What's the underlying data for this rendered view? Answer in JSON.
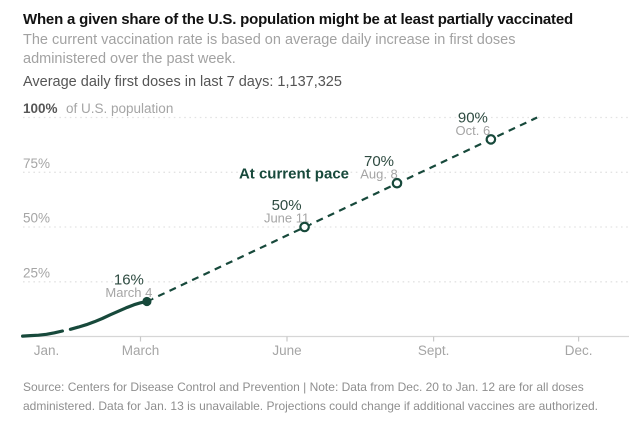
{
  "header": {
    "title": "When a given share of the U.S. population might be at least partially vaccinated",
    "subtitle_line1": "The current vaccination rate is based on average daily increase in first doses",
    "subtitle_line2": "administered over the past week.",
    "stat_line": "Average daily first doses in last 7 days: 1,137,325"
  },
  "footer": {
    "source_line1": "Source: Centers for Disease Control and Prevention | Note: Data from Dec. 20 to Jan. 12 are for all doses",
    "source_line2": "administered. Data for Jan. 13 is unavailable. Projections could change if additional vaccines are authorized."
  },
  "chart_data": {
    "type": "line",
    "title": "When a given share of the U.S. population might be at least partially vaccinated",
    "xlabel": "",
    "ylabel": "% of U.S. population",
    "ylim": [
      0,
      100
    ],
    "x_unit": "day_of_year_2021",
    "grid": "dotted horizontal lines every 25%",
    "annotation": "At current pace",
    "colors": {
      "line": "#17493b",
      "value_label": "#2e4b41",
      "muted_label": "#a5a5a5",
      "strong_label": "#565656",
      "grid": "#e3e3e3",
      "axis": "#d6d6d6",
      "tick": "#c9c9c9"
    },
    "y_ticks": [
      {
        "pct": 100,
        "label": "100%",
        "suffix": "of U.S. population"
      },
      {
        "pct": 75,
        "label": "75%"
      },
      {
        "pct": 50,
        "label": "50%"
      },
      {
        "pct": 25,
        "label": "25%"
      }
    ],
    "x_ticks": [
      {
        "day": 0,
        "label": "Jan.",
        "tick": false
      },
      {
        "day": 59,
        "label": "March",
        "tick": true
      },
      {
        "day": 151,
        "label": "June",
        "tick": true
      },
      {
        "day": 243,
        "label": "Sept.",
        "tick": true
      },
      {
        "day": 334,
        "label": "Dec.",
        "tick": true
      }
    ],
    "series": [
      {
        "name": "actual-pace",
        "style": "solid",
        "segments": [
          [
            [
              -15,
              0.2
            ],
            [
              -10,
              0.4
            ],
            [
              -5,
              0.6
            ],
            [
              0,
              1.0
            ],
            [
              5,
              1.7
            ],
            [
              10,
              2.5
            ]
          ],
          [
            [
              15,
              3.3
            ],
            [
              20,
              4.3
            ],
            [
              25,
              5.4
            ],
            [
              30,
              6.7
            ],
            [
              35,
              8.2
            ],
            [
              40,
              9.9
            ],
            [
              45,
              11.5
            ],
            [
              50,
              13.1
            ],
            [
              55,
              14.5
            ],
            [
              59,
              15.4
            ],
            [
              63,
              16
            ]
          ]
        ]
      },
      {
        "name": "projection",
        "style": "dashed",
        "segments": [
          [
            [
              63,
              16
            ],
            [
              308,
              100
            ]
          ]
        ]
      }
    ],
    "markers": [
      {
        "day": 63,
        "pct": 16,
        "label": "16%",
        "date_label": "March 4",
        "filled": true
      },
      {
        "day": 162,
        "pct": 50,
        "label": "50%",
        "date_label": "June 11",
        "filled": false
      },
      {
        "day": 220,
        "pct": 70,
        "label": "70%",
        "date_label": "Aug. 8",
        "filled": false
      },
      {
        "day": 279,
        "pct": 90,
        "label": "90%",
        "date_label": "Oct. 6",
        "filled": false
      }
    ]
  }
}
